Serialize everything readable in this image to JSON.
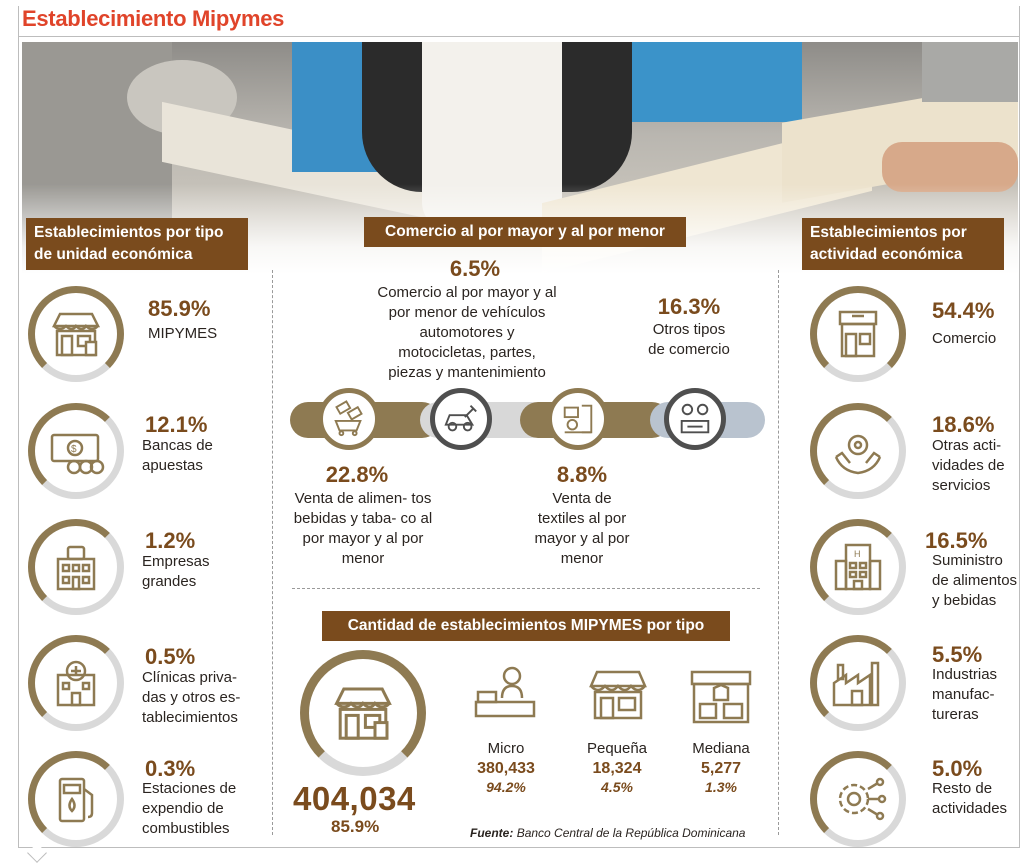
{
  "title": "Establecimiento Mipymes",
  "sections": {
    "left_title": "Establecimientos por tipo de unidad económica",
    "center_title": "Comercio al por mayor y al por menor",
    "right_title": "Establecimientos por actividad económica",
    "bottom_title": "Cantidad de establecimientos MIPYMES por tipo"
  },
  "left_items": [
    {
      "pct": "85.9%",
      "label": "MIPYMES",
      "icon": "storefront-icon"
    },
    {
      "pct": "12.1%",
      "label": "Bancas de apuestas",
      "icon": "banknote-dice-icon"
    },
    {
      "pct": "1.2%",
      "label": "Empresas grandes",
      "icon": "office-building-icon"
    },
    {
      "pct": "0.5%",
      "label": "Clínicas priva- das y otros es- tablecimientos",
      "icon": "clinic-icon"
    },
    {
      "pct": "0.3%",
      "label": "Estaciones de expendio de combustibles",
      "icon": "fuel-pump-icon"
    }
  ],
  "right_items": [
    {
      "pct": "54.4%",
      "label": "Comercio",
      "icon": "shop-icon"
    },
    {
      "pct": "18.6%",
      "label": "Otras acti- vidades de servicios",
      "icon": "hands-gear-icon"
    },
    {
      "pct": "16.5%",
      "label": "Suministro de alimentos y bebidas",
      "icon": "hotel-icon"
    },
    {
      "pct": "5.5%",
      "label": "Industrias manufac- tureras",
      "icon": "factory-icon"
    },
    {
      "pct": "5.0%",
      "label": "Resto de actividades",
      "icon": "gear-network-icon"
    }
  ],
  "commerce": [
    {
      "pct": "22.8%",
      "label": "Venta de alimen- tos bebidas y taba- co al por mayor y al por menor",
      "icon": "food-tobacco-icon"
    },
    {
      "pct": "6.5%",
      "label": "Comercio al por mayor y al por menor de vehículos automotores y motocicletas, partes, piezas y mantenimiento",
      "icon": "car-repair-icon"
    },
    {
      "pct": "8.8%",
      "label": "Venta de textiles al por mayor y al por menor",
      "icon": "textile-machine-icon"
    },
    {
      "pct": "16.3%",
      "label": "Otros tipos de comercio",
      "icon": "commerce-people-icon"
    }
  ],
  "total": {
    "value": "404,034",
    "pct": "85.9%"
  },
  "sizes": [
    {
      "label": "Micro",
      "value": "380,433",
      "pct": "94.2%"
    },
    {
      "label": "Pequeña",
      "value": "18,324",
      "pct": "4.5%"
    },
    {
      "label": "Mediana",
      "value": "5,277",
      "pct": "1.3%"
    }
  ],
  "source": {
    "label": "Fuente:",
    "text": "Banco Central de la República Dominicana"
  },
  "colors": {
    "title": "#e0442a",
    "brown": "#7a4b1d",
    "gold": "#8e7a52",
    "gray_ring": "#d9d9d9"
  }
}
